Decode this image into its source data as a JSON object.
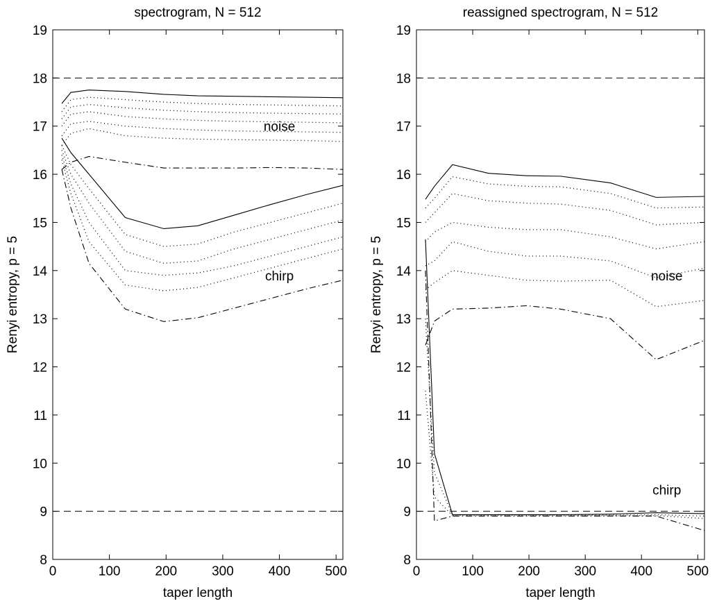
{
  "chart_data": [
    {
      "type": "line",
      "title": "spectrogram, N = 512",
      "x_label": "taper length",
      "y_label": "Renyi entropy, p = 5",
      "xlim": [
        0,
        512
      ],
      "ylim": [
        8,
        19
      ],
      "xticks": [
        0,
        100,
        200,
        300,
        400,
        500
      ],
      "yticks": [
        8,
        9,
        10,
        11,
        12,
        13,
        14,
        15,
        16,
        17,
        18,
        19
      ],
      "hlines": [
        18,
        9
      ],
      "annotations": [
        "noise",
        "chirp"
      ],
      "x": [
        16,
        32,
        64,
        128,
        196,
        256,
        320,
        384,
        448,
        512
      ],
      "series": [
        {
          "color": "#000000",
          "dash": "solid",
          "values": [
            17.47,
            17.7,
            17.75,
            17.72,
            17.66,
            17.63,
            17.62,
            17.61,
            17.6,
            17.59
          ]
        },
        {
          "color": "#000000",
          "dash": "dotted",
          "values": [
            17.3,
            17.55,
            17.6,
            17.55,
            17.5,
            17.47,
            17.45,
            17.44,
            17.43,
            17.42
          ]
        },
        {
          "color": "#000000",
          "dash": "dotted",
          "values": [
            17.15,
            17.4,
            17.45,
            17.38,
            17.33,
            17.3,
            17.28,
            17.27,
            17.26,
            17.25
          ]
        },
        {
          "color": "#000000",
          "dash": "dotted",
          "values": [
            17.0,
            17.25,
            17.3,
            17.2,
            17.15,
            17.12,
            17.1,
            17.09,
            17.08,
            17.07
          ]
        },
        {
          "color": "#000000",
          "dash": "dotted",
          "values": [
            16.8,
            17.05,
            17.1,
            17.0,
            16.95,
            16.92,
            16.9,
            16.89,
            16.88,
            16.87
          ]
        },
        {
          "color": "#000000",
          "dash": "dotted",
          "values": [
            16.6,
            16.85,
            16.95,
            16.8,
            16.75,
            16.73,
            16.72,
            16.71,
            16.7,
            16.68
          ]
        },
        {
          "color": "#000000",
          "dash": "dashdot",
          "values": [
            16.1,
            16.25,
            16.37,
            16.25,
            16.13,
            16.13,
            16.13,
            16.14,
            16.13,
            16.1
          ]
        },
        {
          "color": "#000000",
          "dash": "solid",
          "values": [
            16.75,
            16.45,
            16.0,
            15.1,
            14.87,
            14.93,
            15.15,
            15.37,
            15.58,
            15.77
          ]
        },
        {
          "color": "#000000",
          "dash": "dotted",
          "values": [
            16.6,
            16.2,
            15.7,
            14.75,
            14.5,
            14.55,
            14.8,
            15.0,
            15.2,
            15.4
          ]
        },
        {
          "color": "#000000",
          "dash": "dotted",
          "values": [
            16.5,
            16.0,
            15.4,
            14.4,
            14.15,
            14.2,
            14.45,
            14.65,
            14.85,
            15.05
          ]
        },
        {
          "color": "#000000",
          "dash": "dotted",
          "values": [
            16.4,
            15.8,
            15.0,
            14.0,
            13.9,
            13.95,
            14.1,
            14.3,
            14.5,
            14.7
          ]
        },
        {
          "color": "#000000",
          "dash": "dotted",
          "values": [
            16.3,
            15.6,
            14.6,
            13.7,
            13.58,
            13.65,
            13.85,
            14.05,
            14.25,
            14.45
          ]
        },
        {
          "color": "#000000",
          "dash": "dashdot",
          "values": [
            16.1,
            15.3,
            14.15,
            13.2,
            12.94,
            13.02,
            13.22,
            13.42,
            13.62,
            13.8
          ]
        }
      ]
    },
    {
      "type": "line",
      "title": "reassigned spectrogram, N = 512",
      "x_label": "taper length",
      "y_label": "Renyi entropy, p = 5",
      "xlim": [
        0,
        512
      ],
      "ylim": [
        8,
        19
      ],
      "xticks": [
        0,
        100,
        200,
        300,
        400,
        500
      ],
      "yticks": [
        8,
        9,
        10,
        11,
        12,
        13,
        14,
        15,
        16,
        17,
        18,
        19
      ],
      "hlines": [
        18,
        9
      ],
      "annotations": [
        "noise",
        "chirp"
      ],
      "x": [
        16,
        32,
        64,
        128,
        196,
        256,
        345,
        426,
        512
      ],
      "series": [
        {
          "color": "#000000",
          "dash": "solid",
          "values": [
            15.48,
            15.75,
            16.2,
            16.02,
            15.97,
            15.96,
            15.82,
            15.52,
            15.54
          ]
        },
        {
          "color": "#000000",
          "dash": "dotted",
          "values": [
            15.3,
            15.5,
            15.95,
            15.8,
            15.75,
            15.74,
            15.6,
            15.3,
            15.32
          ]
        },
        {
          "color": "#000000",
          "dash": "dotted",
          "values": [
            15.0,
            15.2,
            15.6,
            15.45,
            15.4,
            15.38,
            15.25,
            14.95,
            15.0
          ]
        },
        {
          "color": "#000000",
          "dash": "dotted",
          "values": [
            14.6,
            14.8,
            15.0,
            14.9,
            14.85,
            14.85,
            14.7,
            14.45,
            14.6
          ]
        },
        {
          "color": "#000000",
          "dash": "dotted",
          "values": [
            14.1,
            14.2,
            14.6,
            14.4,
            14.3,
            14.3,
            14.2,
            13.85,
            14.05
          ]
        },
        {
          "color": "#000000",
          "dash": "dotted",
          "values": [
            13.6,
            13.75,
            14.0,
            13.9,
            13.8,
            13.78,
            13.8,
            13.25,
            13.38
          ]
        },
        {
          "color": "#000000",
          "dash": "dashdot",
          "values": [
            12.45,
            12.95,
            13.2,
            13.22,
            13.27,
            13.2,
            13.0,
            12.15,
            12.55
          ]
        },
        {
          "color": "#000000",
          "dash": "solid",
          "values": [
            14.65,
            10.2,
            8.93,
            8.93,
            8.93,
            8.93,
            8.94,
            8.97,
            8.95
          ]
        },
        {
          "color": "#000000",
          "dash": "dotted",
          "values": [
            13.0,
            9.8,
            8.92,
            8.92,
            8.92,
            8.92,
            8.92,
            8.93,
            8.9
          ]
        },
        {
          "color": "#000000",
          "dash": "dotted",
          "values": [
            11.5,
            9.3,
            8.91,
            8.91,
            8.91,
            8.91,
            8.91,
            8.91,
            8.85
          ]
        },
        {
          "color": "#000000",
          "dash": "dashdot",
          "values": [
            14.0,
            8.8,
            8.9,
            8.9,
            8.9,
            8.9,
            8.9,
            8.9,
            8.6
          ]
        }
      ]
    }
  ]
}
